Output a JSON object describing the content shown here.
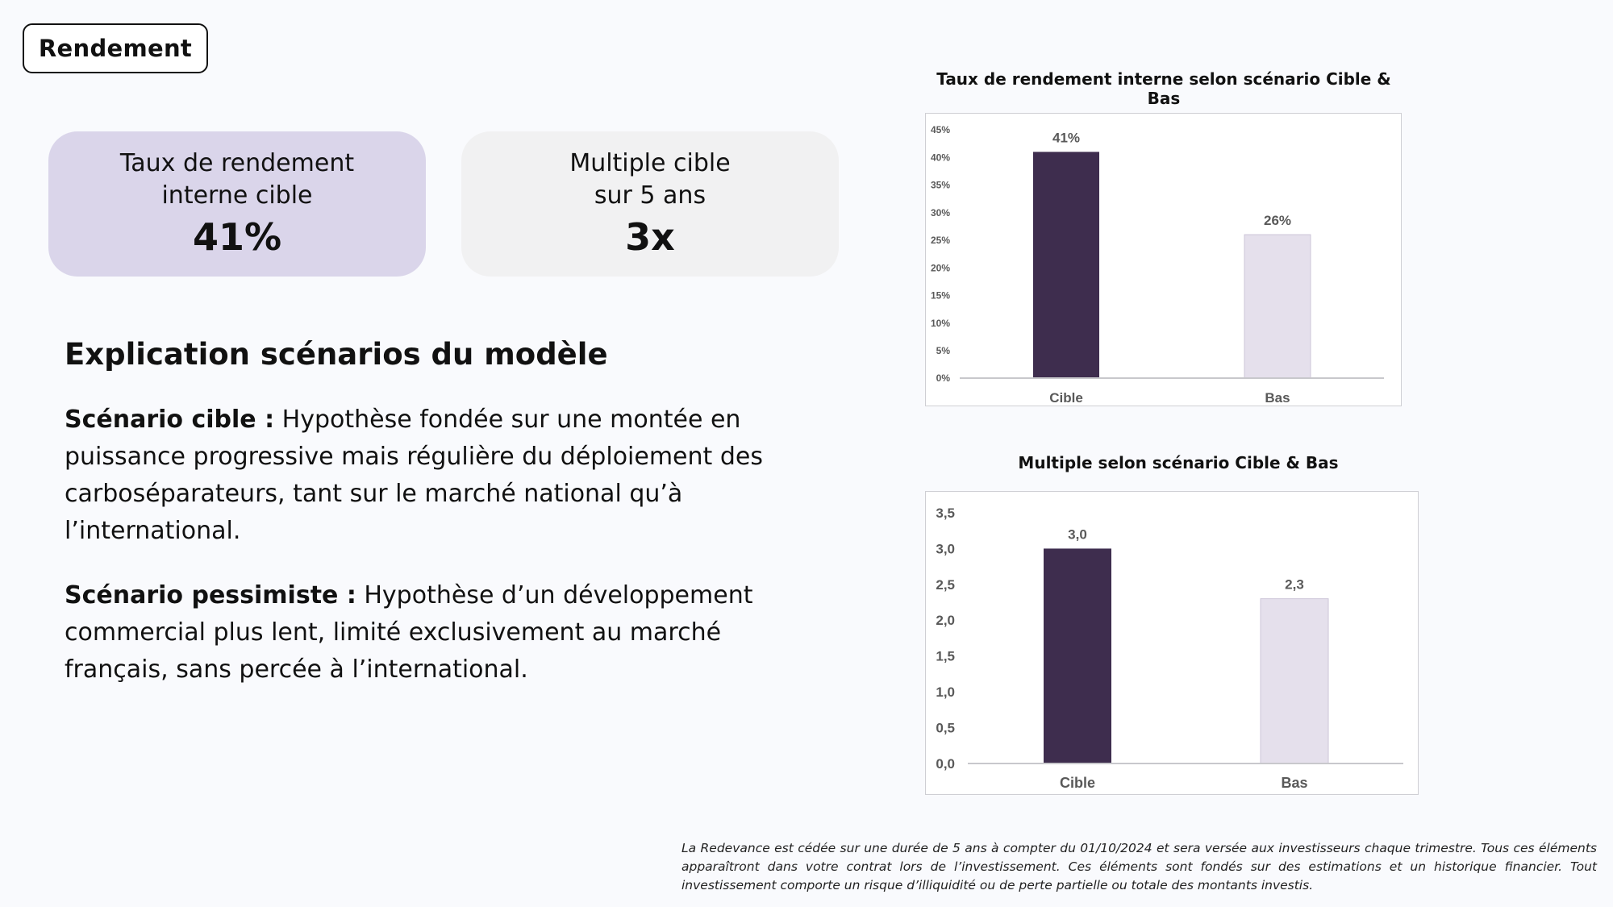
{
  "header": {
    "tag_label": "Rendement"
  },
  "kpis": [
    {
      "label": "Taux de rendement\ninterne cible",
      "value": "41%"
    },
    {
      "label": "Multiple cible\nsur 5 ans",
      "value": "3x"
    }
  ],
  "explanation": {
    "title": "Explication scénarios du modèle",
    "paragraphs": [
      {
        "lead": "Scénario cible :",
        "text": " Hypothèse fondée sur une montée en puissance progressive mais régulière du déploiement des carboséparateurs, tant sur le marché national qu’à l’international."
      },
      {
        "lead": "Scénario pessimiste :",
        "text": " Hypothèse d’un développement commercial plus lent, limité exclusivement au marché français, sans percée à l’international."
      }
    ]
  },
  "colors": {
    "cible": "#3e2d4e",
    "bas": "#e5e0ec",
    "kpi_primary": "#dad5ea",
    "kpi_secondary": "#f1f1f2"
  },
  "chart_data": [
    {
      "type": "bar",
      "title": "Taux de rendement interne selon scénario Cible & Bas",
      "categories": [
        "Cible",
        "Bas"
      ],
      "values": [
        41,
        26
      ],
      "value_labels": [
        "41%",
        "26%"
      ],
      "ylim": [
        0,
        45
      ],
      "yticks": [
        0,
        5,
        10,
        15,
        20,
        25,
        30,
        35,
        40,
        45
      ],
      "ytick_labels": [
        "0%",
        "5%",
        "10%",
        "15%",
        "20%",
        "25%",
        "30%",
        "35%",
        "40%",
        "45%"
      ],
      "bar_colors": [
        "#3e2d4e",
        "#e5e0ec"
      ],
      "grid": false,
      "xlabel": "",
      "ylabel": ""
    },
    {
      "type": "bar",
      "title": "Multiple  selon scénario Cible & Bas",
      "categories": [
        "Cible",
        "Bas"
      ],
      "values": [
        3.0,
        2.3
      ],
      "value_labels": [
        "3,0",
        "2,3"
      ],
      "ylim": [
        0,
        3.5
      ],
      "yticks": [
        0,
        0.5,
        1.0,
        1.5,
        2.0,
        2.5,
        3.0,
        3.5
      ],
      "ytick_labels": [
        "0,0",
        "0,5",
        "1,0",
        "1,5",
        "2,0",
        "2,5",
        "3,0",
        "3,5"
      ],
      "bar_colors": [
        "#3e2d4e",
        "#e5e0ec"
      ],
      "grid": false,
      "xlabel": "",
      "ylabel": ""
    }
  ],
  "disclaimer": "La Redevance est cédée sur une durée de 5 ans à compter du 01/10/2024 et sera versée aux investisseurs chaque trimestre. Tous ces éléments apparaîtront dans votre contrat lors de l’investissement. Ces éléments sont fondés sur des estimations et un historique financier. Tout investissement comporte un risque d’illiquidité ou de perte partielle ou totale des montants investis."
}
